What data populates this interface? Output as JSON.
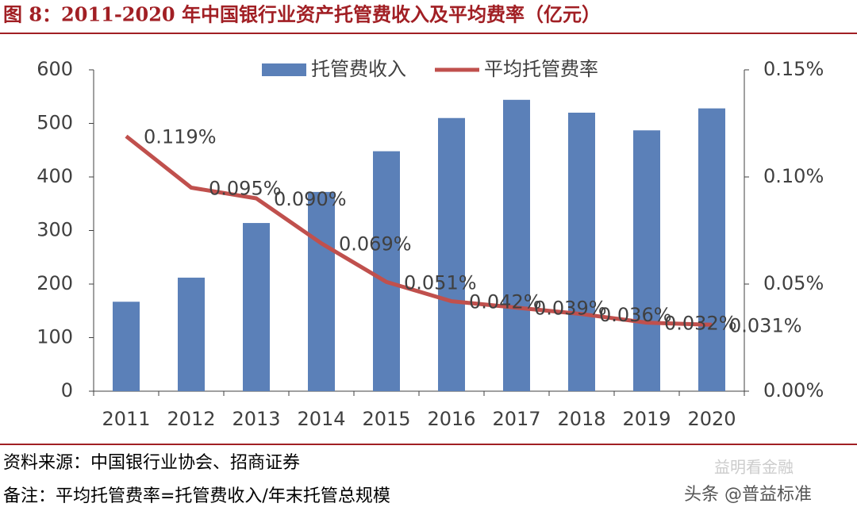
{
  "chart_data": {
    "type": "bar-line",
    "title": "图 8：2011-2020 年中国银行业资产托管费收入及平均费率（亿元）",
    "categories": [
      "2011",
      "2012",
      "2013",
      "2014",
      "2015",
      "2016",
      "2017",
      "2018",
      "2019",
      "2020"
    ],
    "series": [
      {
        "name": "托管费收入",
        "type": "bar",
        "color": "#5b80b8",
        "values": [
          167,
          212,
          314,
          372,
          448,
          510,
          544,
          520,
          487,
          528
        ]
      },
      {
        "name": "平均托管费率",
        "type": "line",
        "axis": "y2",
        "color": "#c0504d",
        "values": [
          0.119,
          0.095,
          0.09,
          0.069,
          0.051,
          0.042,
          0.039,
          0.036,
          0.032,
          0.031
        ],
        "value_labels": [
          "0.119%",
          "0.095%",
          "0.090%",
          "0.069%",
          "0.051%",
          "0.042%",
          "0.039%",
          "0.036%",
          "0.032%",
          "0.031%"
        ]
      }
    ],
    "ylim": [
      0,
      600
    ],
    "yticks": [
      0,
      100,
      200,
      300,
      400,
      500,
      600
    ],
    "y2lim": [
      0,
      0.15
    ],
    "y2ticks": [
      {
        "value": 0,
        "label": "0.00%"
      },
      {
        "value": 0.05,
        "label": "0.05%"
      },
      {
        "value": 0.1,
        "label": "0.10%"
      },
      {
        "value": 0.15,
        "label": "0.15%"
      }
    ],
    "grid": false,
    "legend": "top",
    "source": "资料来源：中国银行业协会、招商证券",
    "note": "备注：平均托管费率=托管费收入/年末托管总规模",
    "watermark": [
      "益明看金融",
      "头条 @普益标准"
    ]
  }
}
